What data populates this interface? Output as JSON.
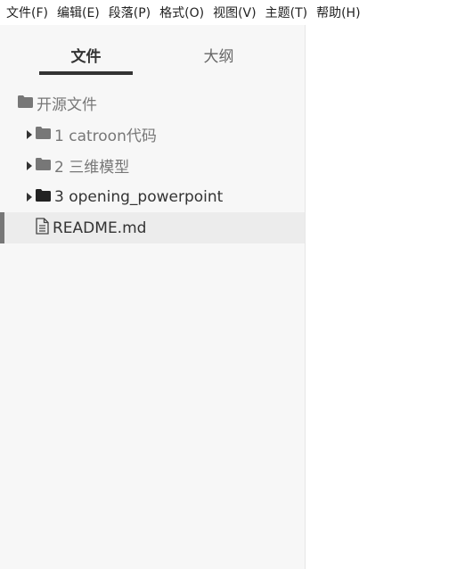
{
  "menu": [
    "文件(F)",
    "编辑(E)",
    "段落(P)",
    "格式(O)",
    "视图(V)",
    "主题(T)",
    "帮助(H)"
  ],
  "sidebar": {
    "tabs": [
      {
        "label": "文件",
        "active": true
      },
      {
        "label": "大纲",
        "active": false
      }
    ],
    "root": {
      "label": "开源文件",
      "icon": "folder-icon"
    },
    "items": [
      {
        "label": "1 catroon代码",
        "icon": "folder-icon",
        "collapsed": true
      },
      {
        "label": "2 三维模型",
        "icon": "folder-icon",
        "collapsed": true
      },
      {
        "label": "3 opening_powerpoint",
        "icon": "folder-icon",
        "collapsed": true
      },
      {
        "label": "README.md",
        "icon": "file-icon",
        "selected": true
      }
    ]
  },
  "colors": {
    "sidebar_bg": "#f7f7f7",
    "selected_bg": "#ececec",
    "folder_gray": "#777777",
    "folder_dark": "#222222"
  }
}
